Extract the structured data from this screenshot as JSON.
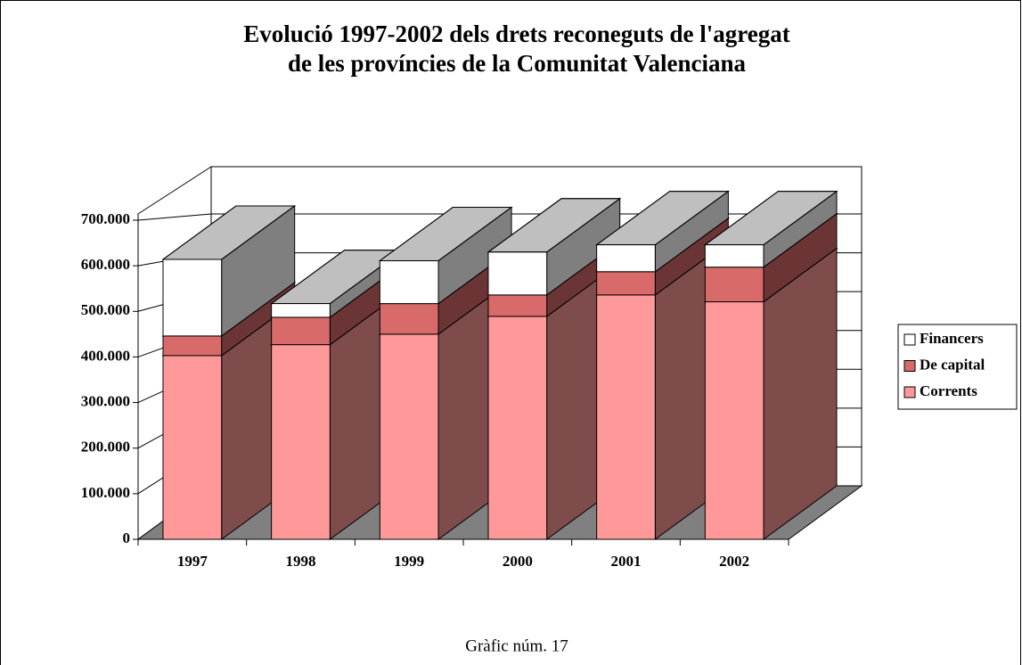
{
  "chart_data": {
    "type": "bar3d_stacked",
    "title": [
      "Evolució 1997-2002 dels drets reconeguts de l'agregat",
      "de les províncies de la Comunitat Valenciana"
    ],
    "categories": [
      "1997",
      "1998",
      "1999",
      "2000",
      "2001",
      "2002"
    ],
    "series": [
      {
        "name": "Corrents",
        "color": "#ff9999",
        "values": [
          403000,
          427000,
          450000,
          489000,
          536000,
          521000
        ]
      },
      {
        "name": "De capital",
        "color": "#d96a6a",
        "values": [
          43000,
          60000,
          67000,
          47000,
          51000,
          76000
        ]
      },
      {
        "name": "Financers",
        "color": "#ffffff",
        "values": [
          168000,
          30000,
          94000,
          94000,
          59000,
          49000
        ]
      }
    ],
    "ylim": [
      0,
      700000
    ],
    "yticks": [
      {
        "value": 0,
        "label": "0"
      },
      {
        "value": 100000,
        "label": "100.000"
      },
      {
        "value": 200000,
        "label": "200.000"
      },
      {
        "value": 300000,
        "label": "300.000"
      },
      {
        "value": 400000,
        "label": "400.000"
      },
      {
        "value": 500000,
        "label": "500.000"
      },
      {
        "value": 600000,
        "label": "600.000"
      },
      {
        "value": 700000,
        "label": "700.000"
      }
    ],
    "grid": true,
    "legend": "right"
  },
  "caption": "Gràfic núm. 17"
}
